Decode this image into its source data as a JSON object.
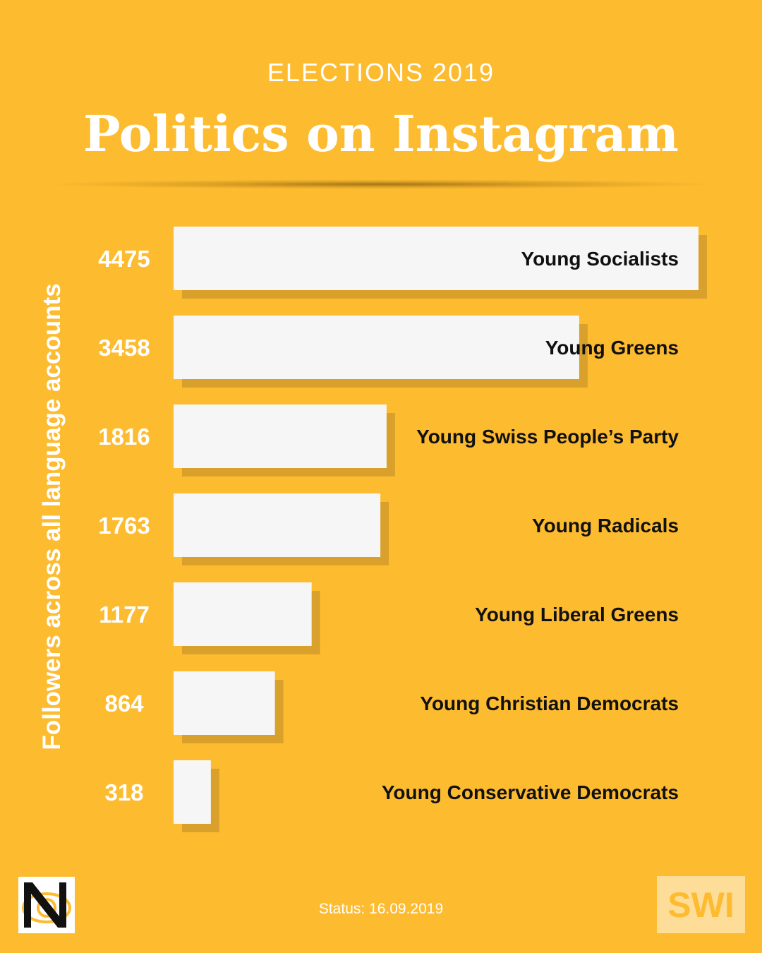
{
  "header": {
    "kicker": "ELECTIONS 2019",
    "title": "Politics on Instagram"
  },
  "footer": {
    "status": "Status: 16.09.2019",
    "right_logo_text": "SWI"
  },
  "colors": {
    "background": "#FDBB30",
    "bar": "#F6F6F6",
    "bar_shadow": "#D9A12C",
    "value_text": "#FFFFFF",
    "category_text": "#111111"
  },
  "chart_data": {
    "type": "bar",
    "orientation": "horizontal",
    "ylabel": "Followers across all language accounts",
    "categories": [
      "Young Socialists",
      "Young Greens",
      "Young Swiss People’s Party",
      "Young Radicals",
      "Young Liberal Greens",
      "Young Christian Democrats",
      "Young Conservative Democrats"
    ],
    "values": [
      4475,
      3458,
      1816,
      1763,
      1177,
      864,
      318
    ],
    "xlim": [
      0,
      4475
    ],
    "grid": false,
    "legend": "none"
  }
}
